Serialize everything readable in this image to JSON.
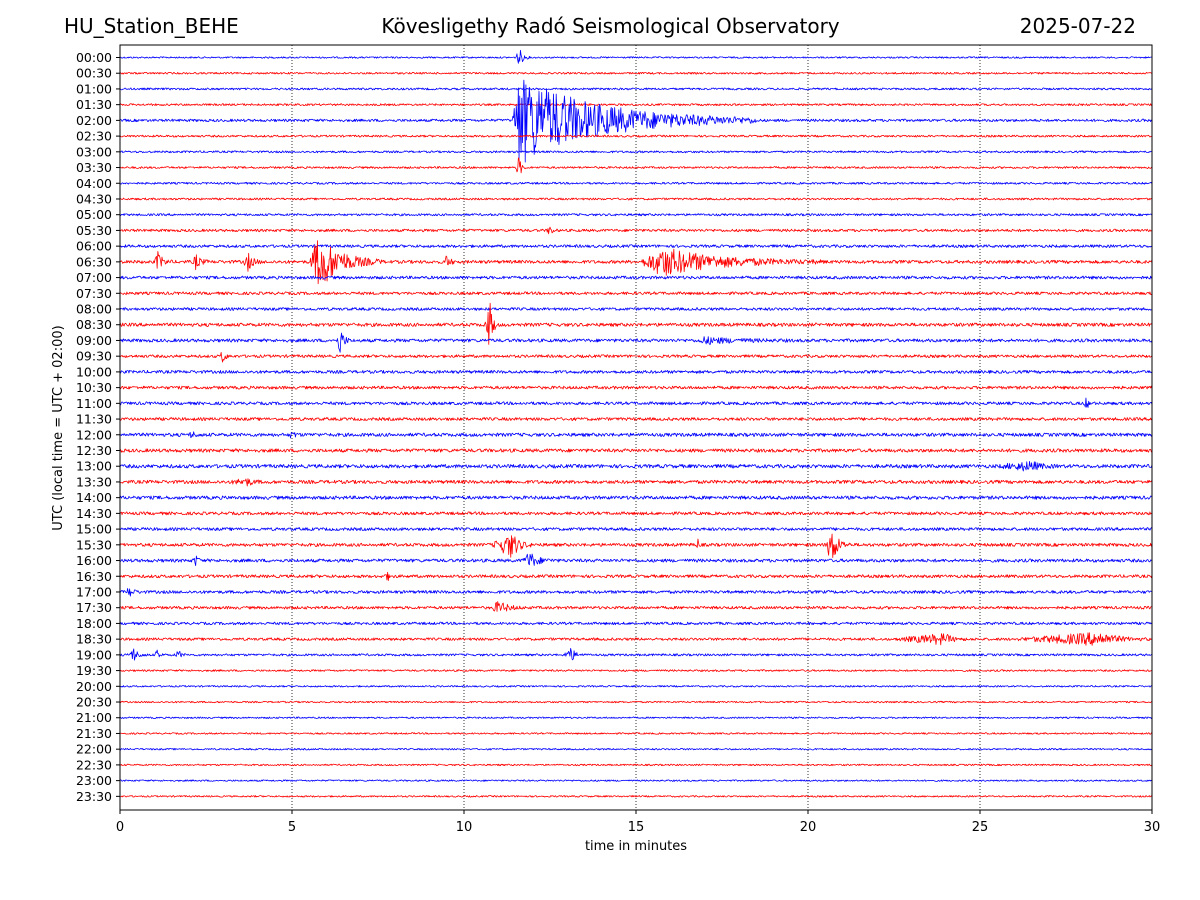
{
  "header": {
    "station": "HU_Station_BEHE",
    "observatory": "Kövesligethy Radó Seismological Observatory",
    "date": "2025-07-22"
  },
  "chart_data": {
    "type": "line",
    "title": "Kövesligethy Radó Seismological Observatory",
    "xlabel": "time in minutes",
    "ylabel": "UTC (local time = UTC + 02:00)",
    "xlim": [
      0,
      30
    ],
    "xticks": [
      0,
      5,
      10,
      15,
      20,
      25,
      30
    ],
    "grid": "vertical dotted at x ticks",
    "trace_colors": [
      "#0000ff",
      "#ff0000"
    ],
    "rows": [
      "00:00",
      "00:30",
      "01:00",
      "01:30",
      "02:00",
      "02:30",
      "03:00",
      "03:30",
      "04:00",
      "04:30",
      "05:00",
      "05:30",
      "06:00",
      "06:30",
      "07:00",
      "07:30",
      "08:00",
      "08:30",
      "09:00",
      "09:30",
      "10:00",
      "10:30",
      "11:00",
      "11:30",
      "12:00",
      "12:30",
      "13:00",
      "13:30",
      "14:00",
      "14:30",
      "15:00",
      "15:30",
      "16:00",
      "16:30",
      "17:00",
      "17:30",
      "18:00",
      "18:30",
      "19:00",
      "19:30",
      "20:00",
      "20:30",
      "21:00",
      "21:30",
      "22:00",
      "22:30",
      "23:00",
      "23:30"
    ],
    "noise_levels": [
      0.8,
      0.9,
      1.0,
      1.0,
      1.3,
      1.0,
      1.0,
      1.0,
      1.0,
      1.0,
      1.1,
      1.3,
      1.4,
      1.6,
      1.5,
      1.4,
      1.4,
      1.7,
      1.6,
      1.4,
      1.5,
      1.5,
      1.5,
      1.5,
      1.7,
      1.7,
      1.8,
      1.7,
      1.7,
      1.5,
      1.5,
      1.6,
      1.6,
      1.5,
      1.5,
      1.4,
      1.3,
      1.3,
      1.1,
      0.9,
      0.8,
      0.8,
      0.8,
      0.8,
      0.8,
      0.8,
      0.8,
      0.8
    ],
    "events": [
      {
        "row": "02:00",
        "start": 11.4,
        "peak": 11.6,
        "end": 18.5,
        "amplitude": 45
      },
      {
        "row": "00:00",
        "start": 11.5,
        "peak": 11.6,
        "end": 11.9,
        "amplitude": 10
      },
      {
        "row": "03:30",
        "start": 11.5,
        "peak": 11.6,
        "end": 11.8,
        "amplitude": 12
      },
      {
        "row": "05:30",
        "start": 12.4,
        "peak": 12.5,
        "end": 12.7,
        "amplitude": 5
      },
      {
        "row": "06:30",
        "start": 5.5,
        "peak": 5.8,
        "end": 7.6,
        "amplitude": 28
      },
      {
        "row": "06:30",
        "start": 1.0,
        "peak": 1.1,
        "end": 1.5,
        "amplitude": 9
      },
      {
        "row": "06:30",
        "start": 2.1,
        "peak": 2.2,
        "end": 2.6,
        "amplitude": 7
      },
      {
        "row": "06:30",
        "start": 3.6,
        "peak": 3.7,
        "end": 4.1,
        "amplitude": 10
      },
      {
        "row": "06:30",
        "start": 9.4,
        "peak": 9.5,
        "end": 9.8,
        "amplitude": 6
      },
      {
        "row": "06:30",
        "start": 15.1,
        "peak": 15.8,
        "end": 20.5,
        "amplitude": 14
      },
      {
        "row": "08:30",
        "start": 10.6,
        "peak": 10.75,
        "end": 11.0,
        "amplitude": 24
      },
      {
        "row": "09:00",
        "start": 6.3,
        "peak": 6.4,
        "end": 6.7,
        "amplitude": 14
      },
      {
        "row": "09:00",
        "start": 16.8,
        "peak": 17.0,
        "end": 19.5,
        "amplitude": 3
      },
      {
        "row": "09:30",
        "start": 2.9,
        "peak": 3.0,
        "end": 3.2,
        "amplitude": 7
      },
      {
        "row": "11:00",
        "start": 28.0,
        "peak": 28.1,
        "end": 28.3,
        "amplitude": 5
      },
      {
        "row": "12:00",
        "start": 2.0,
        "peak": 2.1,
        "end": 2.4,
        "amplitude": 3
      },
      {
        "row": "12:00",
        "start": 4.9,
        "peak": 5.0,
        "end": 5.3,
        "amplitude": 3
      },
      {
        "row": "13:00",
        "start": 25.5,
        "peak": 26.5,
        "end": 27.3,
        "amplitude": 4
      },
      {
        "row": "13:30",
        "start": 3.2,
        "peak": 3.7,
        "end": 4.2,
        "amplitude": 3
      },
      {
        "row": "15:30",
        "start": 10.8,
        "peak": 11.4,
        "end": 12.0,
        "amplitude": 12
      },
      {
        "row": "15:30",
        "start": 20.5,
        "peak": 20.7,
        "end": 21.2,
        "amplitude": 18
      },
      {
        "row": "15:30",
        "start": 16.7,
        "peak": 16.8,
        "end": 16.9,
        "amplitude": 5
      },
      {
        "row": "16:00",
        "start": 11.7,
        "peak": 11.9,
        "end": 12.6,
        "amplitude": 8
      },
      {
        "row": "16:00",
        "start": 2.1,
        "peak": 2.2,
        "end": 2.4,
        "amplitude": 5
      },
      {
        "row": "16:30",
        "start": 7.6,
        "peak": 7.8,
        "end": 8.0,
        "amplitude": 3
      },
      {
        "row": "17:00",
        "start": 0.1,
        "peak": 0.3,
        "end": 0.6,
        "amplitude": 4
      },
      {
        "row": "17:30",
        "start": 10.8,
        "peak": 11.0,
        "end": 11.8,
        "amplitude": 6
      },
      {
        "row": "18:30",
        "start": 22.5,
        "peak": 24.0,
        "end": 24.6,
        "amplitude": 5
      },
      {
        "row": "18:30",
        "start": 26.0,
        "peak": 28.5,
        "end": 30.0,
        "amplitude": 6
      },
      {
        "row": "19:00",
        "start": 0.2,
        "peak": 0.4,
        "end": 0.8,
        "amplitude": 6
      },
      {
        "row": "19:00",
        "start": 1.0,
        "peak": 1.1,
        "end": 1.3,
        "amplitude": 5
      },
      {
        "row": "19:00",
        "start": 1.6,
        "peak": 1.7,
        "end": 1.9,
        "amplitude": 5
      },
      {
        "row": "19:00",
        "start": 12.9,
        "peak": 13.1,
        "end": 13.5,
        "amplitude": 7
      }
    ]
  }
}
